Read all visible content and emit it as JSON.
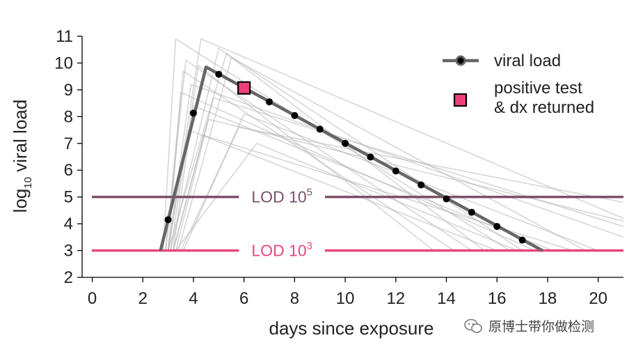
{
  "chart_data": {
    "type": "line",
    "xlabel": "days since exposure",
    "ylabel": {
      "base": "log",
      "sub": "10",
      "rest": " viral load"
    },
    "xlim": [
      -0.4,
      21
    ],
    "ylim": [
      2,
      11
    ],
    "xticks": [
      0,
      2,
      4,
      6,
      8,
      10,
      12,
      14,
      16,
      18,
      20
    ],
    "yticks": [
      2,
      3,
      4,
      5,
      6,
      7,
      8,
      9,
      10,
      11
    ],
    "grid": false,
    "legend": {
      "position": "top-right",
      "entries": [
        "viral load",
        "positive test",
        "& dx returned"
      ]
    },
    "series": [
      {
        "name": "viral load",
        "color": "#666666",
        "line": [
          [
            2.7,
            3.0
          ],
          [
            4.5,
            9.85
          ],
          [
            17.8,
            3.0
          ]
        ],
        "markers": [
          [
            3,
            4.15
          ],
          [
            4,
            8.13
          ],
          [
            5,
            9.58
          ],
          [
            7,
            8.55
          ],
          [
            8,
            8.04
          ],
          [
            9,
            7.53
          ],
          [
            10,
            7.0
          ],
          [
            11,
            6.49
          ],
          [
            12,
            5.97
          ],
          [
            13,
            5.45
          ],
          [
            14,
            4.93
          ],
          [
            15,
            4.43
          ],
          [
            16,
            3.9
          ],
          [
            17,
            3.39
          ]
        ]
      }
    ],
    "positive_test": {
      "x": 6,
      "y": 9.07,
      "color": "#ef3f7a"
    },
    "background_trajectories": [
      {
        "start": 2.8,
        "peak_x": 3.3,
        "peak_y": 10.9,
        "end_x": 16.5,
        "end_y": 3.0
      },
      {
        "start": 3.0,
        "peak_x": 4.3,
        "peak_y": 10.9,
        "end_x": 21.0,
        "end_y": 4.2
      },
      {
        "start": 3.1,
        "peak_x": 5.0,
        "peak_y": 10.55,
        "end_x": 17.0,
        "end_y": 3.0
      },
      {
        "start": 3.0,
        "peak_x": 5.3,
        "peak_y": 10.35,
        "end_x": 15.5,
        "end_y": 3.0
      },
      {
        "start": 2.9,
        "peak_x": 3.6,
        "peak_y": 9.7,
        "end_x": 14.3,
        "end_y": 3.0
      },
      {
        "start": 3.0,
        "peak_x": 3.9,
        "peak_y": 9.2,
        "end_x": 21.0,
        "end_y": 3.5
      },
      {
        "start": 3.2,
        "peak_x": 4.0,
        "peak_y": 8.4,
        "end_x": 18.2,
        "end_y": 3.0
      },
      {
        "start": 3.3,
        "peak_x": 4.6,
        "peak_y": 7.9,
        "end_x": 21.0,
        "end_y": 4.1
      },
      {
        "start": 3.5,
        "peak_x": 5.8,
        "peak_y": 7.6,
        "end_x": 21.0,
        "end_y": 4.8
      },
      {
        "start": 3.2,
        "peak_x": 4.4,
        "peak_y": 7.3,
        "end_x": 19.0,
        "end_y": 3.0
      },
      {
        "start": 3.0,
        "peak_x": 3.8,
        "peak_y": 7.5,
        "end_x": 16.0,
        "end_y": 3.0
      },
      {
        "start": 3.1,
        "peak_x": 4.2,
        "peak_y": 9.9,
        "end_x": 13.5,
        "end_y": 3.0
      },
      {
        "start": 3.4,
        "peak_x": 5.5,
        "peak_y": 10.2,
        "end_x": 19.5,
        "end_y": 3.0
      },
      {
        "start": 3.0,
        "peak_x": 3.5,
        "peak_y": 8.9,
        "end_x": 17.5,
        "end_y": 3.0
      },
      {
        "start": 3.6,
        "peak_x": 6.0,
        "peak_y": 8.1,
        "end_x": 20.0,
        "end_y": 3.0
      },
      {
        "start": 3.2,
        "peak_x": 4.8,
        "peak_y": 8.7,
        "end_x": 21.0,
        "end_y": 3.9
      },
      {
        "start": 3.3,
        "peak_x": 6.5,
        "peak_y": 7.0,
        "end_x": 16.8,
        "end_y": 3.0
      },
      {
        "start": 2.9,
        "peak_x": 3.7,
        "peak_y": 10.1,
        "end_x": 15.0,
        "end_y": 3.0
      }
    ],
    "reference_lines": [
      {
        "y": 5,
        "label": "LOD 10",
        "exp": "5",
        "color": "#7c5068"
      },
      {
        "y": 3,
        "label": "LOD 10",
        "exp": "3",
        "color": "#e8457e"
      }
    ]
  },
  "legend": {
    "viral_load_label": "viral load",
    "positive_label_line1": "positive test",
    "positive_label_line2": "& dx returned"
  },
  "watermark": {
    "text": "原博士带你做检测",
    "icon": "wechat-icon"
  }
}
